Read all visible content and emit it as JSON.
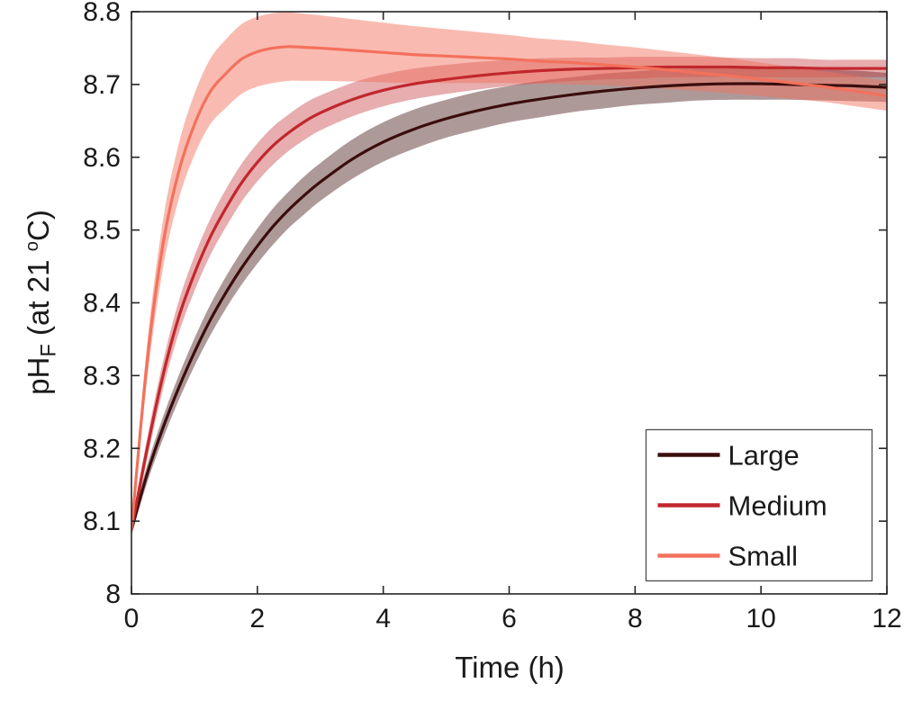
{
  "figure": {
    "background": "#ffffff",
    "axis_color": "#262626",
    "text_color": "#1a1a1a",
    "xlabel": "Time (h)",
    "ylabel": {
      "base": "pH",
      "sub": "F",
      "mid": " (at 21 ",
      "sup": "o",
      "end": "C)"
    }
  },
  "legend": {
    "position": "lower-right",
    "entries": [
      "Large",
      "Medium",
      "Small"
    ]
  },
  "chart_data": {
    "type": "line",
    "title": "",
    "xlabel": "Time (h)",
    "ylabel": "pH_F (at 21 °C)",
    "xlim": [
      0,
      12
    ],
    "ylim": [
      8,
      8.8
    ],
    "xticks": [
      0,
      2,
      4,
      6,
      8,
      10,
      12
    ],
    "yticks": [
      8,
      8.1,
      8.2,
      8.3,
      8.4,
      8.5,
      8.6,
      8.7,
      8.8
    ],
    "grid": false,
    "legend_position": "lower right",
    "x": [
      0,
      0.25,
      0.5,
      0.75,
      1,
      1.25,
      1.5,
      1.75,
      2,
      2.25,
      2.5,
      2.75,
      3,
      3.5,
      4,
      4.5,
      5,
      5.5,
      6,
      6.5,
      7,
      7.5,
      8,
      8.5,
      9,
      9.5,
      10,
      10.5,
      11,
      11.5,
      12
    ],
    "series": [
      {
        "name": "Large",
        "color": "#3a0d0d",
        "band_color": "rgba(61,13,13,0.42)",
        "values": [
          8.088,
          8.165,
          8.228,
          8.283,
          8.332,
          8.376,
          8.414,
          8.448,
          8.478,
          8.505,
          8.528,
          8.548,
          8.566,
          8.597,
          8.621,
          8.639,
          8.653,
          8.664,
          8.673,
          8.68,
          8.686,
          8.691,
          8.695,
          8.698,
          8.7,
          8.701,
          8.701,
          8.7,
          8.699,
          8.698,
          8.696
        ],
        "band_halfwidth": [
          0.008,
          0.012,
          0.015,
          0.017,
          0.019,
          0.021,
          0.022,
          0.023,
          0.024,
          0.025,
          0.025,
          0.026,
          0.026,
          0.027,
          0.027,
          0.027,
          0.026,
          0.026,
          0.025,
          0.025,
          0.024,
          0.024,
          0.023,
          0.023,
          0.022,
          0.022,
          0.022,
          0.021,
          0.021,
          0.021,
          0.02
        ]
      },
      {
        "name": "Medium",
        "color": "#c1272d",
        "band_color": "rgba(193,39,45,0.38)",
        "values": [
          8.088,
          8.2,
          8.3,
          8.38,
          8.44,
          8.49,
          8.53,
          8.565,
          8.593,
          8.616,
          8.634,
          8.649,
          8.661,
          8.679,
          8.692,
          8.701,
          8.707,
          8.712,
          8.716,
          8.719,
          8.721,
          8.722,
          8.723,
          8.724,
          8.724,
          8.724,
          8.723,
          8.723,
          8.722,
          8.722,
          8.722
        ],
        "band_halfwidth": [
          0.008,
          0.015,
          0.019,
          0.022,
          0.024,
          0.025,
          0.026,
          0.026,
          0.026,
          0.026,
          0.025,
          0.025,
          0.024,
          0.023,
          0.022,
          0.021,
          0.02,
          0.019,
          0.018,
          0.017,
          0.016,
          0.015,
          0.015,
          0.014,
          0.014,
          0.013,
          0.013,
          0.013,
          0.012,
          0.012,
          0.012
        ]
      },
      {
        "name": "Small",
        "color": "#f3715c",
        "band_color": "rgba(243,113,92,0.48)",
        "values": [
          8.088,
          8.32,
          8.48,
          8.58,
          8.645,
          8.69,
          8.715,
          8.735,
          8.745,
          8.75,
          8.752,
          8.751,
          8.75,
          8.747,
          8.744,
          8.741,
          8.739,
          8.737,
          8.735,
          8.732,
          8.73,
          8.727,
          8.724,
          8.72,
          8.716,
          8.712,
          8.707,
          8.702,
          8.697,
          8.691,
          8.684
        ],
        "band_halfwidth": [
          0.01,
          0.025,
          0.033,
          0.038,
          0.042,
          0.045,
          0.047,
          0.048,
          0.048,
          0.048,
          0.047,
          0.046,
          0.045,
          0.043,
          0.041,
          0.039,
          0.037,
          0.035,
          0.033,
          0.031,
          0.03,
          0.028,
          0.027,
          0.026,
          0.025,
          0.024,
          0.023,
          0.022,
          0.021,
          0.021,
          0.02
        ]
      }
    ]
  }
}
